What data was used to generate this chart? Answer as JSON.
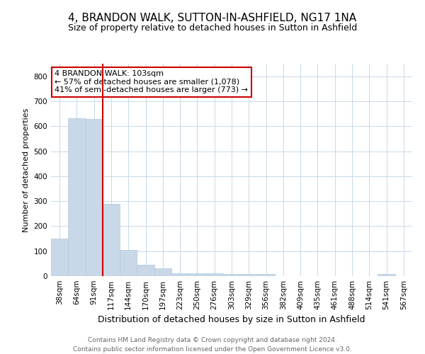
{
  "title_line1": "4, BRANDON WALK, SUTTON-IN-ASHFIELD, NG17 1NA",
  "title_line2": "Size of property relative to detached houses in Sutton in Ashfield",
  "xlabel": "Distribution of detached houses by size in Sutton in Ashfield",
  "ylabel": "Number of detached properties",
  "categories": [
    "38sqm",
    "64sqm",
    "91sqm",
    "117sqm",
    "144sqm",
    "170sqm",
    "197sqm",
    "223sqm",
    "250sqm",
    "276sqm",
    "303sqm",
    "329sqm",
    "356sqm",
    "382sqm",
    "409sqm",
    "435sqm",
    "461sqm",
    "488sqm",
    "514sqm",
    "541sqm",
    "567sqm"
  ],
  "values": [
    150,
    632,
    628,
    290,
    104,
    45,
    30,
    12,
    11,
    10,
    8,
    8,
    8,
    0,
    0,
    0,
    0,
    0,
    0,
    8,
    0
  ],
  "bar_color": "#c8d8e8",
  "bar_edge_color": "#b0c8dc",
  "vline_x": 2.5,
  "vline_color": "#cc0000",
  "annotation_text": "4 BRANDON WALK: 103sqm\n← 57% of detached houses are smaller (1,078)\n41% of semi-detached houses are larger (773) →",
  "annotation_box_color": "#ffffff",
  "annotation_box_edge_color": "#cc0000",
  "ylim": [
    0,
    850
  ],
  "yticks": [
    0,
    100,
    200,
    300,
    400,
    500,
    600,
    700,
    800
  ],
  "footnote": "Contains HM Land Registry data © Crown copyright and database right 2024.\nContains public sector information licensed under the Open Government Licence v3.0.",
  "bg_color": "#ffffff",
  "grid_color": "#c8d8e8",
  "title_fontsize": 11,
  "subtitle_fontsize": 9,
  "xlabel_fontsize": 9,
  "ylabel_fontsize": 8,
  "tick_fontsize": 7.5,
  "annot_fontsize": 8,
  "footnote_fontsize": 6.5
}
